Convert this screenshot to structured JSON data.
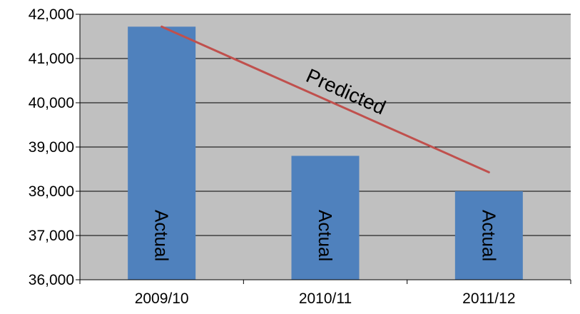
{
  "chart_data": {
    "type": "bar",
    "categories": [
      "2009/10",
      "2010/11",
      "2011/12"
    ],
    "series": [
      {
        "values": [
          41720,
          38800,
          38000
        ],
        "bar_label": "Actual"
      }
    ],
    "line": {
      "label": "Predicted",
      "points": [
        {
          "x": "2009/10",
          "y": 41720
        },
        {
          "x": "2011/12",
          "y": 38430
        }
      ]
    },
    "y_ticks": [
      "36,000",
      "37,000",
      "38,000",
      "39,000",
      "40,000",
      "41,000",
      "42,000"
    ],
    "ylim": [
      36000,
      42000
    ],
    "title": "",
    "xlabel": "",
    "ylabel": "",
    "grid": true,
    "legend": "none",
    "colors": {
      "plot_bg": "#c0c0c0",
      "bar": "#4f81bd",
      "line": "#c0504d",
      "grid": "#000000"
    }
  }
}
